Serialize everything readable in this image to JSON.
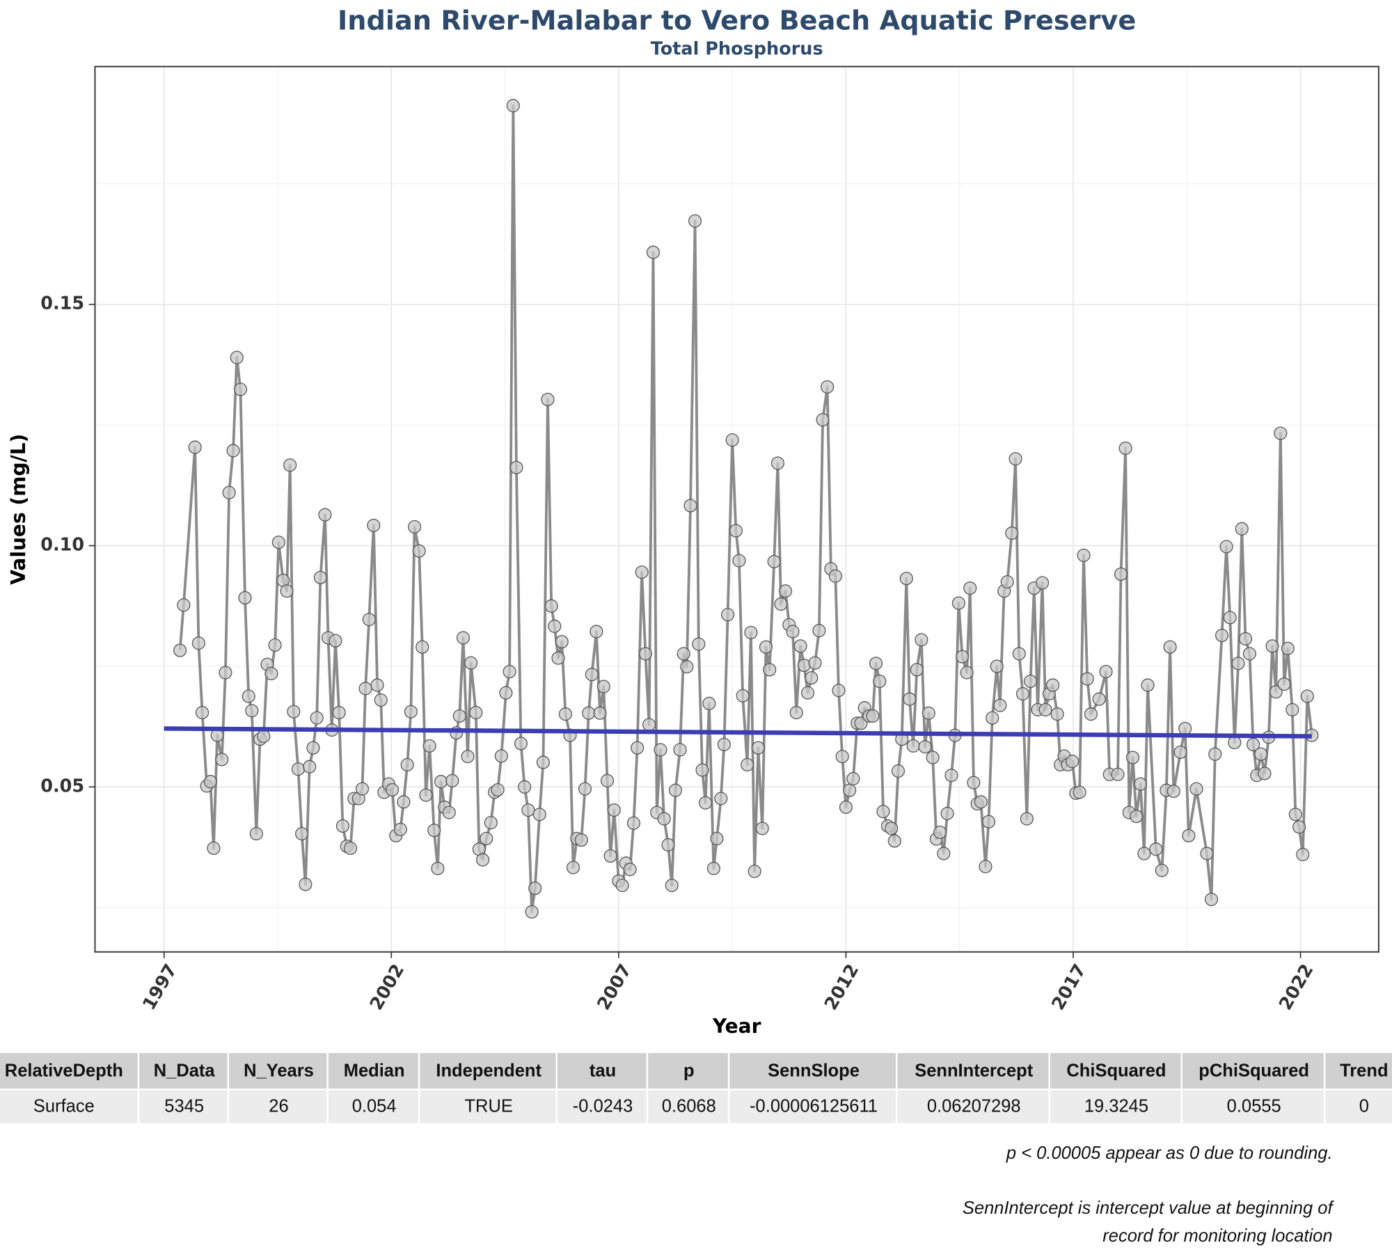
{
  "chart_data": {
    "type": "line",
    "title": "Indian River-Malabar to Vero Beach Aquatic Preserve",
    "subtitle": "Total Phosphorus",
    "x_label": "Year",
    "y_label": "Values (mg/L)",
    "xlim": [
      1995.48,
      2023.72
    ],
    "ylim": [
      0.0158,
      0.1993
    ],
    "xticks": [
      1997,
      2002,
      2007,
      2012,
      2017,
      2022
    ],
    "yticks": [
      0.05,
      {
        "value": 0.1,
        "label": "0.10"
      },
      0.15
    ],
    "minor_xgrid": [
      1999.5,
      2004.5,
      2009.5,
      2014.5,
      2019.5
    ],
    "minor_ygrid": [
      0.025,
      0.075,
      0.125,
      0.175
    ],
    "grid": true,
    "color": "#8a8a8a",
    "marker_color": "#c8c8c8",
    "x": [
      1997.35,
      1997.43,
      1997.68,
      1997.76,
      1997.84,
      1997.94,
      1998.02,
      1998.09,
      1998.17,
      1998.27,
      1998.35,
      1998.43,
      1998.52,
      1998.6,
      1998.68,
      1998.78,
      1998.86,
      1998.93,
      1999.03,
      1999.11,
      1999.19,
      1999.27,
      1999.36,
      1999.44,
      1999.52,
      1999.62,
      1999.7,
      1999.77,
      1999.85,
      1999.95,
      2000.03,
      2000.11,
      2000.2,
      2000.28,
      2000.36,
      2000.44,
      2000.54,
      2000.61,
      2000.69,
      2000.77,
      2000.85,
      2000.93,
      2001.02,
      2001.1,
      2001.18,
      2001.28,
      2001.36,
      2001.43,
      2001.51,
      2001.61,
      2001.69,
      2001.77,
      2001.84,
      2001.94,
      2002.02,
      2002.1,
      2002.2,
      2002.27,
      2002.35,
      2002.43,
      2002.51,
      2002.61,
      2002.68,
      2002.76,
      2002.84,
      2002.94,
      2003.02,
      2003.09,
      2003.17,
      2003.27,
      2003.34,
      2003.43,
      2003.5,
      2003.58,
      2003.68,
      2003.75,
      2003.86,
      2003.93,
      2004.01,
      2004.09,
      2004.19,
      2004.27,
      2004.34,
      2004.42,
      2004.52,
      2004.6,
      2004.68,
      2004.75,
      2004.85,
      2004.93,
      2005.01,
      2005.09,
      2005.16,
      2005.26,
      2005.34,
      2005.44,
      2005.52,
      2005.59,
      2005.67,
      2005.75,
      2005.83,
      2005.93,
      2006.0,
      2006.08,
      2006.18,
      2006.26,
      2006.34,
      2006.41,
      2006.51,
      2006.59,
      2006.67,
      2006.75,
      2006.82,
      2006.9,
      2007.0,
      2007.08,
      2007.16,
      2007.25,
      2007.33,
      2007.41,
      2007.51,
      2007.59,
      2007.67,
      2007.76,
      2007.84,
      2007.92,
      2008.0,
      2008.09,
      2008.17,
      2008.25,
      2008.35,
      2008.43,
      2008.5,
      2008.58,
      2008.68,
      2008.76,
      2008.84,
      2008.91,
      2008.99,
      2009.09,
      2009.16,
      2009.25,
      2009.32,
      2009.4,
      2009.5,
      2009.58,
      2009.65,
      2009.73,
      2009.83,
      2009.91,
      2009.99,
      2010.07,
      2010.16,
      2010.24,
      2010.32,
      2010.42,
      2010.5,
      2010.57,
      2010.67,
      2010.75,
      2010.83,
      2010.91,
      2011.0,
      2011.08,
      2011.16,
      2011.24,
      2011.32,
      2011.41,
      2011.49,
      2011.59,
      2011.67,
      2011.77,
      2011.84,
      2011.92,
      2012.0,
      2012.08,
      2012.16,
      2012.25,
      2012.33,
      2012.41,
      2012.51,
      2012.59,
      2012.66,
      2012.74,
      2012.82,
      2012.92,
      2013.0,
      2013.07,
      2013.15,
      2013.23,
      2013.33,
      2013.4,
      2013.48,
      2013.56,
      2013.66,
      2013.74,
      2013.82,
      2013.91,
      2013.99,
      2014.07,
      2014.15,
      2014.23,
      2014.32,
      2014.4,
      2014.48,
      2014.56,
      2014.66,
      2014.73,
      2014.81,
      2014.89,
      2014.97,
      2015.07,
      2015.14,
      2015.22,
      2015.32,
      2015.39,
      2015.48,
      2015.55,
      2015.65,
      2015.73,
      2015.81,
      2015.89,
      2015.98,
      2016.06,
      2016.14,
      2016.22,
      2016.32,
      2016.39,
      2016.47,
      2016.55,
      2016.65,
      2016.72,
      2016.8,
      2016.88,
      2016.98,
      2017.06,
      2017.14,
      2017.23,
      2017.31,
      2017.39,
      2017.57,
      2017.72,
      2017.8,
      2017.98,
      2018.05,
      2018.15,
      2018.23,
      2018.31,
      2018.39,
      2018.48,
      2018.56,
      2018.64,
      2018.82,
      2018.95,
      2019.05,
      2019.13,
      2019.21,
      2019.36,
      2019.46,
      2019.54,
      2019.71,
      2019.94,
      2020.04,
      2020.12,
      2020.27,
      2020.37,
      2020.45,
      2020.55,
      2020.63,
      2020.71,
      2020.79,
      2020.88,
      2020.96,
      2021.04,
      2021.13,
      2021.21,
      2021.3,
      2021.38,
      2021.46,
      2021.56,
      2021.64,
      2021.72,
      2021.82,
      2021.89,
      2021.97,
      2022.05,
      2022.15,
      2022.25
    ],
    "values": [
      0.0783,
      0.0877,
      0.1204,
      0.0798,
      0.0654,
      0.0502,
      0.0511,
      0.0373,
      0.0607,
      0.0557,
      0.0737,
      0.111,
      0.1197,
      0.139,
      0.1324,
      0.0892,
      0.0688,
      0.0658,
      0.0403,
      0.0599,
      0.0605,
      0.0754,
      0.0735,
      0.0794,
      0.1007,
      0.0928,
      0.0906,
      0.1167,
      0.0656,
      0.0537,
      0.0403,
      0.0298,
      0.0542,
      0.0581,
      0.0643,
      0.0934,
      0.1064,
      0.0809,
      0.0618,
      0.0803,
      0.0654,
      0.0419,
      0.0377,
      0.0373,
      0.0476,
      0.0476,
      0.0496,
      0.0704,
      0.0847,
      0.1042,
      0.0711,
      0.068,
      0.0489,
      0.0506,
      0.0494,
      0.0399,
      0.0412,
      0.0469,
      0.0546,
      0.0656,
      0.1039,
      0.0989,
      0.079,
      0.0483,
      0.0585,
      0.041,
      0.0331,
      0.0511,
      0.0458,
      0.0447,
      0.0513,
      0.0612,
      0.0647,
      0.0809,
      0.0563,
      0.0757,
      0.0654,
      0.0371,
      0.0349,
      0.0393,
      0.0426,
      0.0489,
      0.0494,
      0.0564,
      0.0695,
      0.0739,
      0.1912,
      0.1162,
      0.059,
      0.05,
      0.0452,
      0.0241,
      0.029,
      0.0443,
      0.0551,
      0.1303,
      0.0875,
      0.0833,
      0.0767,
      0.0801,
      0.0651,
      0.0607,
      0.0333,
      0.0393,
      0.039,
      0.0496,
      0.0653,
      0.0733,
      0.0822,
      0.0653,
      0.0708,
      0.0513,
      0.0357,
      0.0452,
      0.0305,
      0.0296,
      0.0342,
      0.0329,
      0.0425,
      0.0581,
      0.0945,
      0.0776,
      0.0629,
      0.1608,
      0.0447,
      0.0577,
      0.0434,
      0.038,
      0.0296,
      0.0493,
      0.0577,
      0.0776,
      0.0749,
      0.1083,
      0.1673,
      0.0796,
      0.0535,
      0.0467,
      0.0673,
      0.0331,
      0.0393,
      0.0476,
      0.0588,
      0.0857,
      0.1219,
      0.1031,
      0.0969,
      0.0689,
      0.0546,
      0.082,
      0.0325,
      0.0581,
      0.0414,
      0.079,
      0.0743,
      0.0967,
      0.1171,
      0.0879,
      0.0906,
      0.0836,
      0.0822,
      0.0654,
      0.0792,
      0.0752,
      0.0695,
      0.0726,
      0.0757,
      0.0824,
      0.1261,
      0.1329,
      0.0952,
      0.0937,
      0.07,
      0.0563,
      0.0458,
      0.0493,
      0.0517,
      0.0632,
      0.0632,
      0.0664,
      0.0647,
      0.0647,
      0.0756,
      0.0719,
      0.0449,
      0.0419,
      0.0414,
      0.0388,
      0.0533,
      0.0599,
      0.0932,
      0.0682,
      0.0585,
      0.0743,
      0.0805,
      0.0583,
      0.0653,
      0.0561,
      0.0392,
      0.0406,
      0.0362,
      0.0445,
      0.0524,
      0.0607,
      0.0881,
      0.077,
      0.0737,
      0.0912,
      0.0509,
      0.0465,
      0.0469,
      0.0335,
      0.0428,
      0.0643,
      0.075,
      0.0669,
      0.0906,
      0.0925,
      0.1026,
      0.118,
      0.0776,
      0.0693,
      0.0434,
      0.0719,
      0.0912,
      0.066,
      0.0923,
      0.066,
      0.0693,
      0.0711,
      0.0651,
      0.0546,
      0.0564,
      0.0546,
      0.0553,
      0.0487,
      0.0489,
      0.098,
      0.0724,
      0.0651,
      0.0682,
      0.0739,
      0.0526,
      0.0526,
      0.0941,
      0.1202,
      0.0447,
      0.0561,
      0.0439,
      0.0506,
      0.0362,
      0.0711,
      0.0371,
      0.0327,
      0.0493,
      0.079,
      0.0491,
      0.0572,
      0.0621,
      0.0399,
      0.0496,
      0.0362,
      0.0267,
      0.0568,
      0.0814,
      0.0998,
      0.0851,
      0.0592,
      0.0756,
      0.1035,
      0.0807,
      0.0776,
      0.0588,
      0.0524,
      0.0568,
      0.0528,
      0.0603,
      0.0792,
      0.0697,
      0.1233,
      0.0713,
      0.0787,
      0.066,
      0.0443,
      0.0417,
      0.036,
      0.0688,
      0.0607
    ],
    "trend": {
      "color": "#3c3cb4",
      "x": [
        1997,
        2022.25
      ],
      "values": [
        0.0621,
        0.0605
      ]
    }
  },
  "table": {
    "header": [
      "RelativeDepth",
      "N_Data",
      "N_Years",
      "Median",
      "Independent",
      "tau",
      "p",
      "SennSlope",
      "SennIntercept",
      "ChiSquared",
      "pChiSquared",
      "Trend"
    ],
    "rows": [
      [
        "Surface",
        "5345",
        "26",
        "0.054",
        "TRUE",
        "-0.0243",
        "0.6068",
        "-0.00006125611",
        "0.06207298",
        "19.3245",
        "0.0555",
        "0"
      ]
    ]
  },
  "notes": [
    [
      "p < 0.00005 appear as 0 due to rounding."
    ],
    [
      "SennIntercept is intercept value at beginning of",
      "record for monitoring location"
    ]
  ]
}
